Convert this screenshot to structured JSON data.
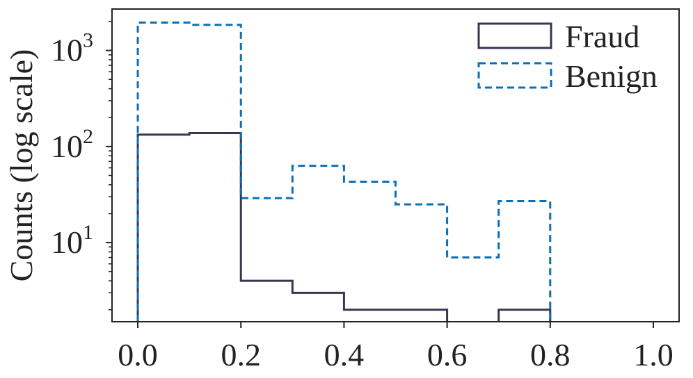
{
  "chart_data": {
    "type": "histogram",
    "ylabel": "Counts (log scale)",
    "xlabel": "",
    "y_scale": "log",
    "xlim": [
      -0.05,
      1.05
    ],
    "ylim": [
      1.5,
      2700
    ],
    "grid": false,
    "legend_position": "top-right",
    "x_ticks": [
      "0.0",
      "0.2",
      "0.4",
      "0.6",
      "0.8",
      "1.0"
    ],
    "x_tick_values": [
      0.0,
      0.2,
      0.4,
      0.6,
      0.8,
      1.0
    ],
    "y_ticks": [
      {
        "value": 10,
        "base": "10",
        "exp": "1"
      },
      {
        "value": 100,
        "base": "10",
        "exp": "2"
      },
      {
        "value": 1000,
        "base": "10",
        "exp": "3"
      }
    ],
    "bin_edges": [
      0.0,
      0.1,
      0.2,
      0.3,
      0.4,
      0.5,
      0.6,
      0.7,
      0.8
    ],
    "series": [
      {
        "name": "Fraud",
        "style": "solid",
        "color": "#3a3550",
        "values": [
          133,
          138,
          4,
          3,
          2,
          2,
          0,
          2
        ]
      },
      {
        "name": "Benign",
        "style": "dashed",
        "color": "#0a6fb8",
        "values": [
          1950,
          1850,
          29,
          63,
          43,
          25,
          7,
          27
        ]
      }
    ]
  }
}
